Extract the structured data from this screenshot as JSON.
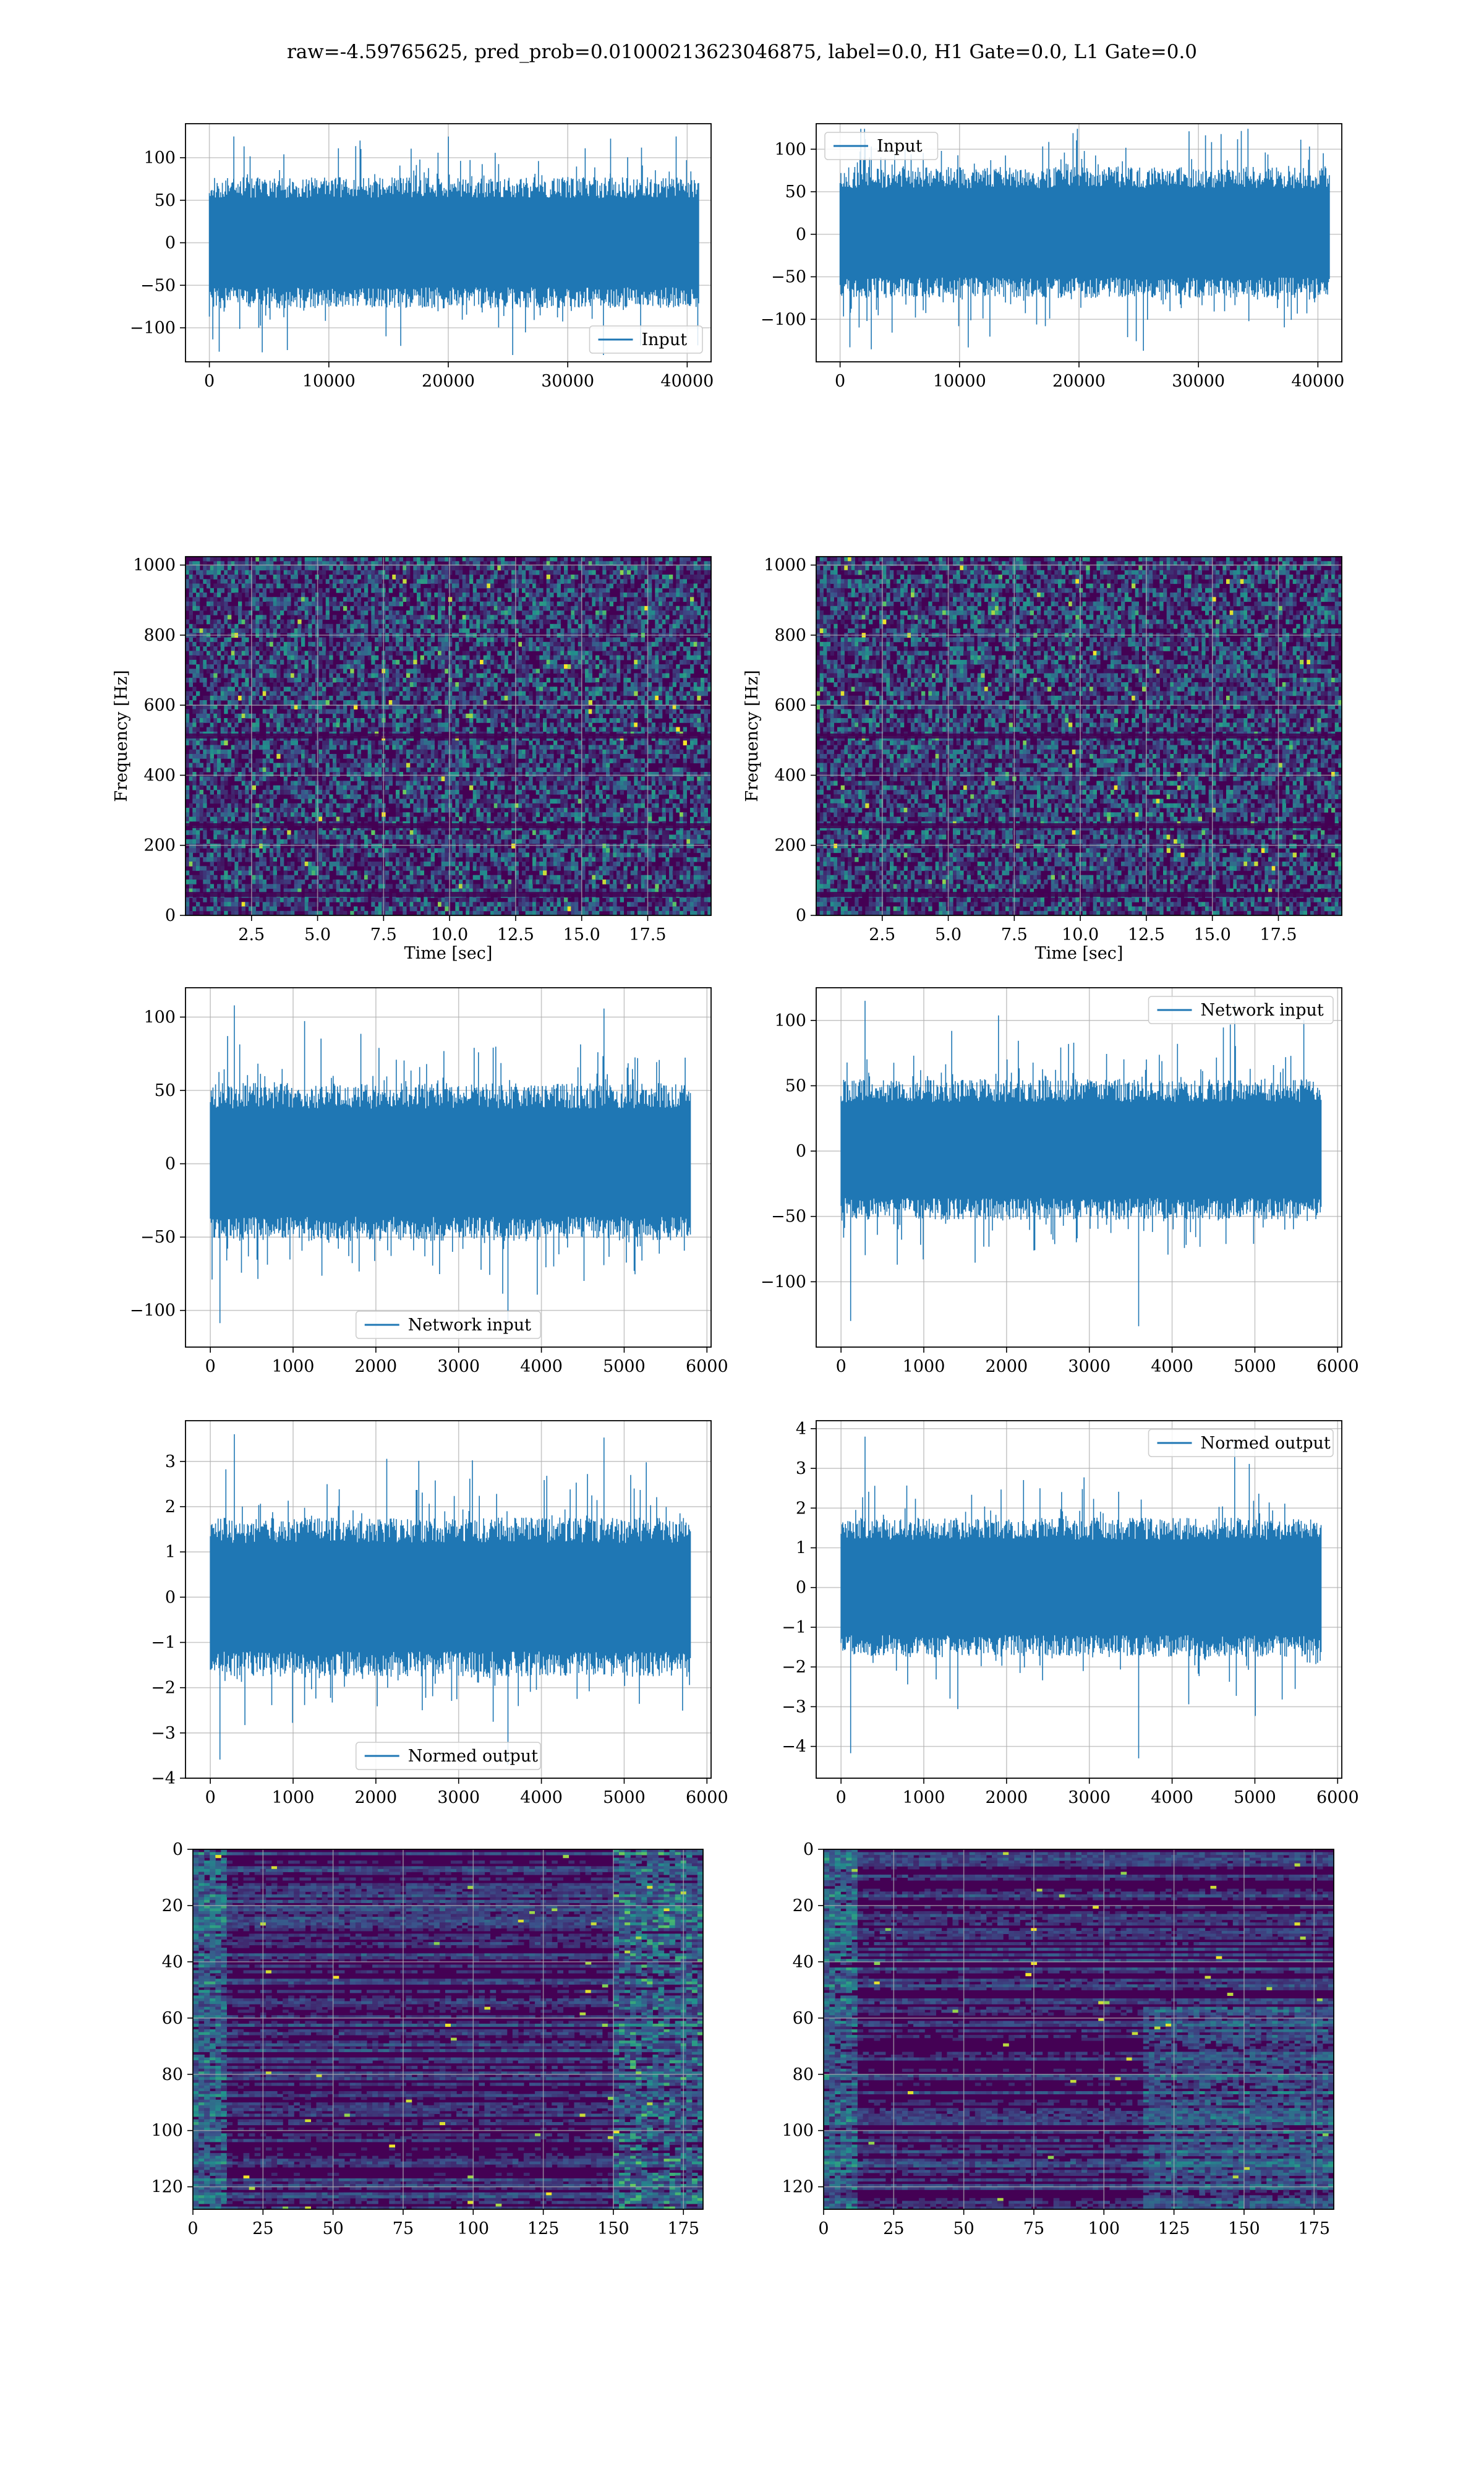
{
  "figure": {
    "suptitle": "raw=-4.59765625, pred_prob=0.01000213623046875, label=0.0, H1 Gate=0.0, L1 Gate=0.0"
  },
  "colors": {
    "series": "#1f77b4",
    "grid": "#b0b0b0",
    "viridis_low": "#440154",
    "viridis_mid": "#21918c",
    "viridis_high": "#fde725"
  },
  "chart_data": [
    {
      "id": "r1c1",
      "type": "line",
      "series": [
        {
          "name": "Input"
        }
      ],
      "legend_position": "lower-right",
      "xlim": [
        -2000,
        42000
      ],
      "ylim": [
        -140,
        140
      ],
      "xticks": [
        0,
        10000,
        20000,
        30000,
        40000
      ],
      "yticks": [
        -100,
        -50,
        0,
        50,
        100
      ],
      "x_range": [
        0,
        40960
      ],
      "core_amplitude": [
        -70,
        70
      ],
      "extreme_amplitude": [
        -132,
        125
      ],
      "grid": true
    },
    {
      "id": "r1c2",
      "type": "line",
      "series": [
        {
          "name": "Input"
        }
      ],
      "legend_position": "upper-left",
      "xlim": [
        -2000,
        42000
      ],
      "ylim": [
        -150,
        130
      ],
      "xticks": [
        0,
        10000,
        20000,
        30000,
        40000
      ],
      "yticks": [
        -100,
        -50,
        0,
        50,
        100
      ],
      "x_range": [
        0,
        40960
      ],
      "core_amplitude": [
        -68,
        72
      ],
      "extreme_amplitude": [
        -137,
        124
      ],
      "grid": true
    },
    {
      "id": "r2c1",
      "type": "heatmap",
      "variant": "spectrogram",
      "xlabel": "Time [sec]",
      "ylabel": "Frequency [Hz]",
      "xlim": [
        0,
        19.9
      ],
      "ylim": [
        0,
        1024
      ],
      "xticks": [
        2.5,
        5.0,
        7.5,
        10.0,
        12.5,
        15.0,
        17.5
      ],
      "xtick_labels": [
        "2.5",
        "5.0",
        "7.5",
        "10.0",
        "12.5",
        "15.0",
        "17.5"
      ],
      "yticks": [
        0,
        200,
        400,
        600,
        800,
        1000
      ],
      "colormap": "viridis",
      "grid": true
    },
    {
      "id": "r2c2",
      "type": "heatmap",
      "variant": "spectrogram",
      "xlabel": "Time [sec]",
      "ylabel": "Frequency [Hz]",
      "xlim": [
        0,
        19.9
      ],
      "ylim": [
        0,
        1024
      ],
      "xticks": [
        2.5,
        5.0,
        7.5,
        10.0,
        12.5,
        15.0,
        17.5
      ],
      "xtick_labels": [
        "2.5",
        "5.0",
        "7.5",
        "10.0",
        "12.5",
        "15.0",
        "17.5"
      ],
      "yticks": [
        0,
        200,
        400,
        600,
        800,
        1000
      ],
      "colormap": "viridis",
      "grid": true
    },
    {
      "id": "r3c1",
      "type": "line",
      "series": [
        {
          "name": "Network input"
        }
      ],
      "legend_position": "lower-center",
      "xlim": [
        -300,
        6050
      ],
      "ylim": [
        -125,
        120
      ],
      "xticks": [
        0,
        1000,
        2000,
        3000,
        4000,
        5000,
        6000
      ],
      "yticks": [
        -100,
        -50,
        0,
        50,
        100
      ],
      "x_range": [
        0,
        5800
      ],
      "core_amplitude": [
        -48,
        50
      ],
      "extreme_amplitude": [
        -112,
        108
      ],
      "grid": true
    },
    {
      "id": "r3c2",
      "type": "line",
      "series": [
        {
          "name": "Network input"
        }
      ],
      "legend_position": "upper-right",
      "xlim": [
        -300,
        6050
      ],
      "ylim": [
        -150,
        125
      ],
      "xticks": [
        0,
        1000,
        2000,
        3000,
        4000,
        5000,
        6000
      ],
      "yticks": [
        -100,
        -50,
        0,
        50,
        100
      ],
      "x_range": [
        0,
        5800
      ],
      "core_amplitude": [
        -48,
        50
      ],
      "extreme_amplitude": [
        -134,
        115
      ],
      "grid": true
    },
    {
      "id": "r4c1",
      "type": "line",
      "series": [
        {
          "name": "Normed output"
        }
      ],
      "legend_position": "lower-center",
      "xlim": [
        -300,
        6050
      ],
      "ylim": [
        -4.0,
        3.9
      ],
      "xticks": [
        0,
        1000,
        2000,
        3000,
        4000,
        5000,
        6000
      ],
      "yticks": [
        -4,
        -3,
        -2,
        -1,
        0,
        1,
        2,
        3
      ],
      "yticks_labels": [
        "−4",
        "−3",
        "−2",
        "−1",
        "0",
        "1",
        "2",
        "3"
      ],
      "x_range": [
        0,
        5800
      ],
      "core_amplitude": [
        -1.6,
        1.6
      ],
      "extreme_amplitude": [
        -3.7,
        3.6
      ],
      "grid": true
    },
    {
      "id": "r4c2",
      "type": "line",
      "series": [
        {
          "name": "Normed output"
        }
      ],
      "legend_position": "upper-right",
      "xlim": [
        -300,
        6050
      ],
      "ylim": [
        -4.8,
        4.2
      ],
      "xticks": [
        0,
        1000,
        2000,
        3000,
        4000,
        5000,
        6000
      ],
      "yticks": [
        -4,
        -3,
        -2,
        -1,
        0,
        1,
        2,
        3,
        4
      ],
      "x_range": [
        0,
        5800
      ],
      "core_amplitude": [
        -1.6,
        1.6
      ],
      "extreme_amplitude": [
        -4.3,
        3.8
      ],
      "grid": true
    },
    {
      "id": "r5c1",
      "type": "heatmap",
      "variant": "feature-map",
      "xlim": [
        0,
        182
      ],
      "ylim": [
        128,
        0
      ],
      "xticks": [
        0,
        25,
        50,
        75,
        100,
        125,
        150,
        175
      ],
      "yticks": [
        0,
        20,
        40,
        60,
        80,
        100,
        120
      ],
      "colormap": "viridis",
      "grid": true
    },
    {
      "id": "r5c2",
      "type": "heatmap",
      "variant": "feature-map",
      "xlim": [
        0,
        182
      ],
      "ylim": [
        128,
        0
      ],
      "xticks": [
        0,
        25,
        50,
        75,
        100,
        125,
        150,
        175
      ],
      "yticks": [
        0,
        20,
        40,
        60,
        80,
        100,
        120
      ],
      "colormap": "viridis",
      "grid": true
    }
  ]
}
